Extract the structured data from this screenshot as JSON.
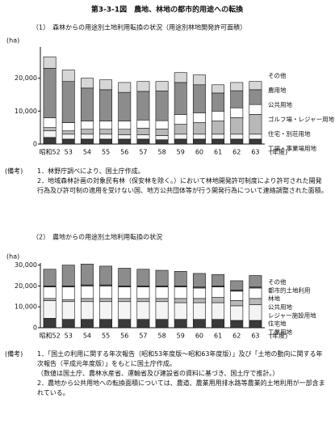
{
  "title": "第3-3-1図　農地、林地の都市的用途への転換",
  "chart_data": [
    {
      "type": "stacked_bar",
      "heading": "（1）　森林からの用途別土地利用転換の状況（用途別林地開発許可面積）",
      "ylabel": "(ha)",
      "xlabel": "(年度)",
      "categories": [
        "昭和52",
        "53",
        "54",
        "55",
        "56",
        "57",
        "58",
        "59",
        "60",
        "61",
        "62",
        "63"
      ],
      "ylim": [
        0,
        29500
      ],
      "yticks": [
        0,
        {
          "value": 10000,
          "label": "10,000"
        },
        {
          "value": 20000,
          "label": "20,000"
        }
      ],
      "series": [
        {
          "name": "工場・事業場用地",
          "color": "#3a3a3a",
          "values": [
            2000,
            1500,
            1500,
            1500,
            1500,
            1500,
            1300,
            1500,
            1500,
            1500,
            1500,
            1500
          ]
        },
        {
          "name": "住宅・別荘用地",
          "color": "#f4f4f4",
          "values": [
            2000,
            1500,
            1500,
            1500,
            1300,
            1300,
            1300,
            1500,
            1500,
            1500,
            1500,
            1500
          ]
        },
        {
          "name": "ゴルフ場・レジャー用地",
          "color": "#b8b8b8",
          "values": [
            1000,
            1000,
            1500,
            1500,
            1700,
            2000,
            2000,
            3000,
            3500,
            4000,
            5000,
            6000
          ]
        },
        {
          "name": "公共用地",
          "color": "#ffffff",
          "values": [
            3000,
            2500,
            2500,
            2500,
            2500,
            2500,
            2500,
            3000,
            3000,
            3000,
            3000,
            3000
          ]
        },
        {
          "name": "農用地",
          "color": "#8c8c8c",
          "values": [
            15000,
            12500,
            10000,
            9500,
            8700,
            8700,
            9000,
            9700,
            8500,
            5500,
            5200,
            4500
          ]
        },
        {
          "name": "その他",
          "color": "#d6d6d6",
          "values": [
            3500,
            3500,
            3000,
            3000,
            3000,
            3000,
            2900,
            3000,
            3000,
            2500,
            2500,
            2500
          ]
        }
      ],
      "notes_head": "(備考)",
      "notes": [
        "1．林野庁調べにより、国土庁作成。",
        "2．地域森林計画の対象民有林（保安林を除く。）において林地開発許可制度により許可された開発行為及び許可制の適用を受けない国、地方公共団体等が行う開発行為について連絡調整された面積。"
      ]
    },
    {
      "type": "stacked_bar",
      "heading": "（2）　農地からの用途別土地利用転換の状況",
      "ylabel": "(ha)",
      "xlabel": "(年度)",
      "annotation": "都市的土地利用",
      "categories": [
        "昭和52",
        "53",
        "54",
        "55",
        "56",
        "57",
        "58",
        "59",
        "60",
        "61",
        "62",
        "63"
      ],
      "ylim": [
        0,
        31000
      ],
      "yticks": [
        0,
        {
          "value": 10000,
          "label": "10,000"
        },
        {
          "value": 20000,
          "label": "20,000"
        },
        {
          "value": 30000,
          "label": "30,000"
        }
      ],
      "series": [
        {
          "name": "工業用地",
          "color": "#3a3a3a",
          "values": [
            4500,
            4000,
            4000,
            4000,
            4000,
            4000,
            4000,
            4000,
            4000,
            4000,
            3500,
            3500
          ]
        },
        {
          "name": "住宅地",
          "color": "#f4f4f4",
          "values": [
            8500,
            8500,
            8500,
            8500,
            8500,
            8500,
            8500,
            8000,
            8000,
            8000,
            7000,
            7500
          ]
        },
        {
          "name": "レジャー施設用地",
          "color": "#b8b8b8",
          "values": [
            1000,
            1000,
            1500,
            1500,
            1500,
            1500,
            1500,
            2000,
            2000,
            2500,
            2500,
            3000
          ]
        },
        {
          "name": "公共用地",
          "color": "#ffffff",
          "values": [
            5500,
            6000,
            6000,
            6000,
            5500,
            5500,
            5500,
            5500,
            5000,
            5000,
            4500,
            5000
          ]
        },
        {
          "name": "林地",
          "color": "#555555",
          "values": [
            500,
            500,
            500,
            500,
            500,
            500,
            500,
            500,
            500,
            500,
            500,
            500
          ]
        },
        {
          "name": "その他",
          "color": "#8c8c8c",
          "values": [
            8000,
            10000,
            10000,
            9000,
            8500,
            8000,
            7500,
            7000,
            6500,
            5500,
            4500,
            5500
          ]
        }
      ],
      "notes_head": "(備考)",
      "notes": [
        "1．「国土の利用に関する年次報告（昭和53年度版～昭和63年度版）」及び「土地の動向に関する年次報告（平成元年度版）」をもとに国土庁作成。",
        "（数値は国土庁、農林水産省、運輸省及び建設省の資料に基づき、国土庁で推計。）",
        "2．農地から公共用地への転換面積については、農道、農業用用排水路等農業的土地利用が一部含まれている。"
      ]
    }
  ]
}
